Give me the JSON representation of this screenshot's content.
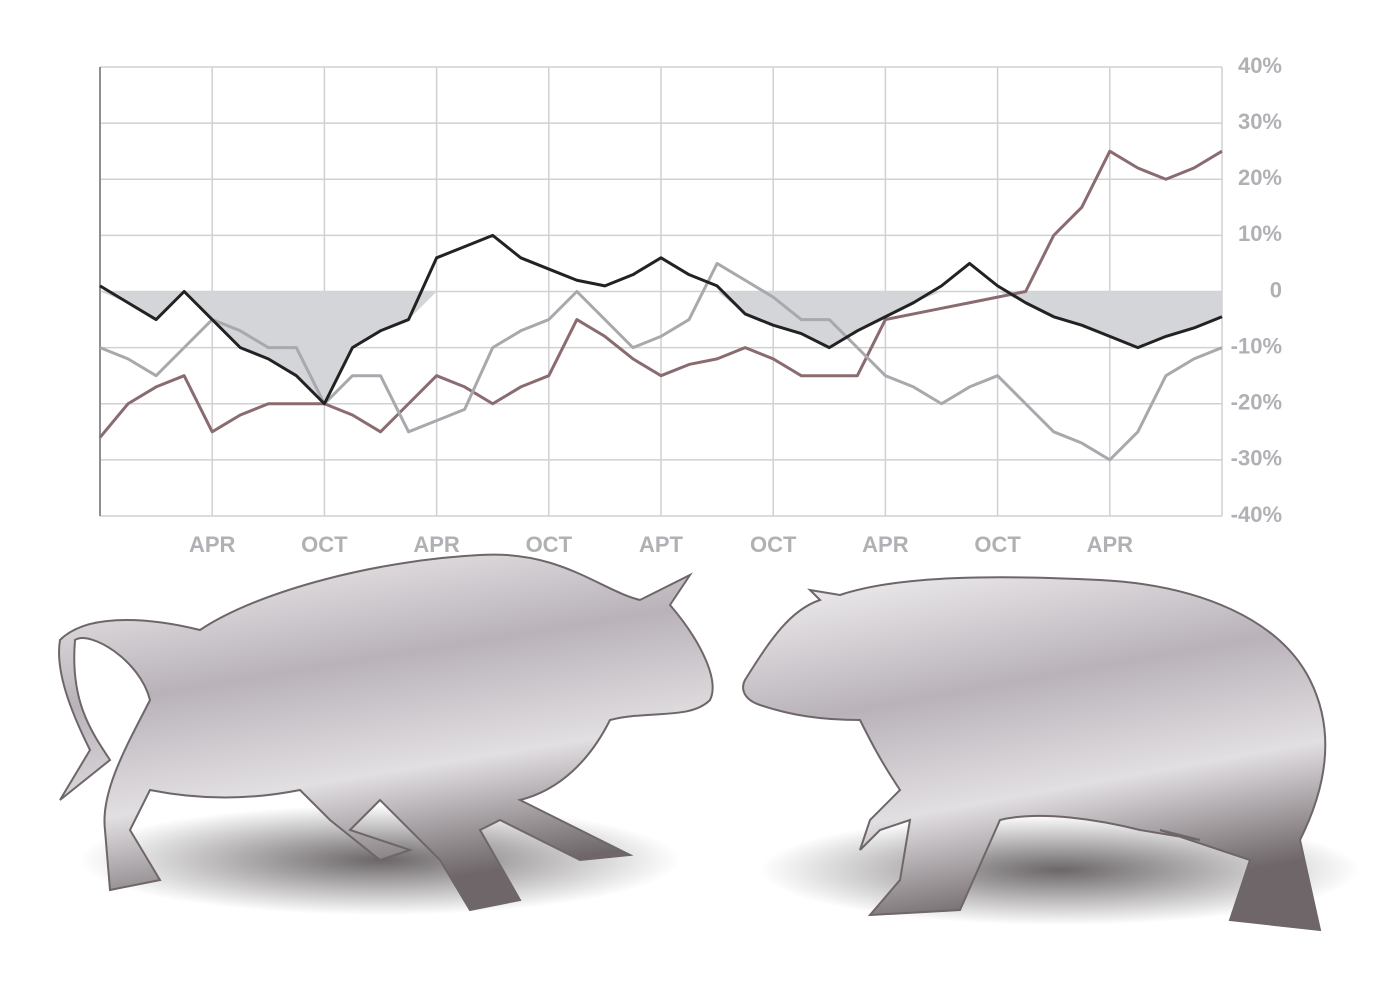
{
  "chart_data": {
    "type": "line",
    "categories": [
      null,
      null,
      null,
      null,
      "APR",
      null,
      null,
      null,
      "OCT",
      null,
      null,
      null,
      "APR",
      null,
      null,
      null,
      "OCT",
      null,
      null,
      null,
      "APT",
      null,
      null,
      null,
      "OCT",
      null,
      null,
      null,
      "APR",
      null,
      null,
      null,
      "OCT",
      null,
      null,
      null,
      "APR",
      null,
      null,
      null,
      null
    ],
    "series": [
      {
        "color": "#8a6b70",
        "values": [
          -26,
          -20,
          -17,
          -15,
          -25,
          -22,
          -20,
          -20,
          -20,
          -22,
          -25,
          -20,
          -15,
          -17,
          -20,
          -17,
          -15,
          -5,
          -8,
          -12,
          -15,
          -13,
          -12,
          -10,
          -12,
          -15,
          -15,
          -15,
          -5,
          -4,
          -3,
          -2,
          -1,
          0,
          10,
          15,
          25,
          22,
          20,
          22,
          25
        ]
      },
      {
        "color": "#a8a9ad",
        "values": [
          -10,
          -12,
          -15,
          -10,
          -5,
          -7,
          -10,
          -10,
          -20,
          -15,
          -15,
          -25,
          -23,
          -21,
          -10,
          -7,
          -5,
          0,
          -5,
          -10,
          -8,
          -5,
          5,
          2,
          -1,
          -5,
          -5,
          -10,
          -15,
          -17,
          -20,
          -17,
          -15,
          -20,
          -25,
          -27,
          -30,
          -25,
          -15,
          -12,
          -10
        ]
      },
      {
        "color": "#222222",
        "fill": "#d4d5d8",
        "values": [
          1,
          -2,
          -5,
          0,
          -5,
          -10,
          -12,
          -15,
          -20,
          -10,
          -7,
          -5,
          6,
          8,
          10,
          6,
          4,
          2,
          1,
          3,
          6,
          3,
          1,
          -4,
          -6,
          -7.5,
          -10,
          -7,
          -4.5,
          -2,
          1,
          5,
          1,
          -2,
          -4.5,
          -6,
          -8,
          -10,
          -8,
          -6.5,
          -4.5
        ]
      }
    ],
    "ylim": [
      -40,
      40
    ],
    "yticks": [
      {
        "value": -40,
        "label": "-40%"
      },
      {
        "value": -30,
        "label": "-30%"
      },
      {
        "value": -20,
        "label": "-20%"
      },
      {
        "value": -10,
        "label": "-10%"
      },
      0,
      {
        "value": 10,
        "label": "10%"
      },
      {
        "value": 20,
        "label": "20%"
      },
      {
        "value": 30,
        "label": "30%"
      },
      {
        "value": 40,
        "label": "40%"
      }
    ],
    "grid": true
  }
}
